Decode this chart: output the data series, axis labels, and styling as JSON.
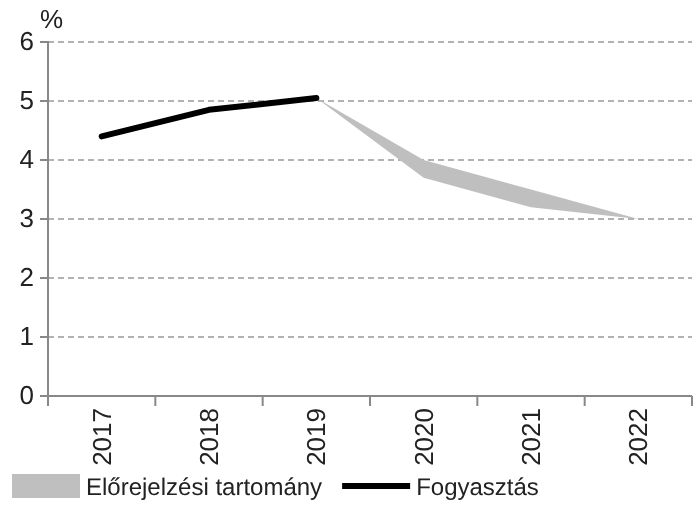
{
  "chart_data": {
    "type": "line",
    "ylabel": "%",
    "categories": [
      "2017",
      "2018",
      "2019",
      "2020",
      "2021",
      "2022"
    ],
    "series": [
      {
        "name": "Előrejelzési tartomány",
        "color": "#bfbfbf",
        "values": [
          null,
          null,
          null,
          null,
          null,
          null
        ],
        "lower": [
          null,
          null,
          5.05,
          3.7,
          3.2,
          3.0
        ],
        "upper": [
          null,
          null,
          5.05,
          4.0,
          3.5,
          3.0
        ]
      },
      {
        "name": "Fogyasztás",
        "type": "line",
        "color": "#000000",
        "values": [
          4.4,
          4.85,
          5.05,
          null,
          null,
          null
        ]
      }
    ],
    "ylim": [
      0,
      6
    ],
    "yticks": [
      0,
      1,
      2,
      3,
      4,
      5,
      6
    ],
    "grid": "y",
    "legend": "bottom"
  }
}
